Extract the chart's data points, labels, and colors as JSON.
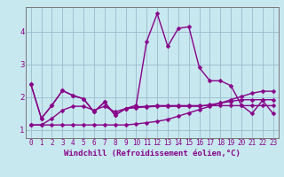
{
  "title": "",
  "xlabel": "Windchill (Refroidissement éolien,°C)",
  "bg_color": "#c8e8f0",
  "grid_color": "#99bbcc",
  "line_color": "#880088",
  "x_ticks": [
    0,
    1,
    2,
    3,
    4,
    5,
    6,
    7,
    8,
    9,
    10,
    11,
    12,
    13,
    14,
    15,
    16,
    17,
    18,
    19,
    20,
    21,
    22,
    23
  ],
  "y_ticks": [
    1,
    2,
    3,
    4
  ],
  "xlim": [
    -0.5,
    23.5
  ],
  "ylim": [
    0.75,
    4.75
  ],
  "series": [
    [
      2.4,
      1.35,
      1.75,
      2.2,
      2.05,
      1.95,
      1.55,
      1.85,
      1.45,
      1.65,
      1.75,
      3.7,
      4.55,
      3.55,
      4.1,
      4.15,
      2.9,
      2.5,
      2.5,
      2.35,
      1.75,
      1.5,
      1.9,
      1.5
    ],
    [
      2.4,
      1.35,
      1.75,
      2.2,
      2.05,
      1.95,
      1.55,
      1.85,
      1.45,
      1.65,
      1.7,
      1.72,
      1.74,
      1.74,
      1.74,
      1.74,
      1.74,
      1.74,
      1.74,
      1.74,
      1.74,
      1.74,
      1.74,
      1.74
    ],
    [
      1.15,
      1.15,
      1.35,
      1.6,
      1.72,
      1.72,
      1.6,
      1.72,
      1.55,
      1.65,
      1.68,
      1.7,
      1.72,
      1.72,
      1.72,
      1.72,
      1.72,
      1.77,
      1.82,
      1.87,
      1.92,
      1.92,
      1.92,
      1.92
    ],
    [
      1.15,
      1.15,
      1.15,
      1.15,
      1.15,
      1.15,
      1.15,
      1.15,
      1.15,
      1.15,
      1.18,
      1.22,
      1.26,
      1.32,
      1.42,
      1.52,
      1.62,
      1.72,
      1.82,
      1.92,
      2.02,
      2.12,
      2.18,
      2.18
    ]
  ],
  "marker_size": 2.5,
  "line_width": 1.0,
  "tick_fontsize": 5.5,
  "xlabel_fontsize": 6.5
}
